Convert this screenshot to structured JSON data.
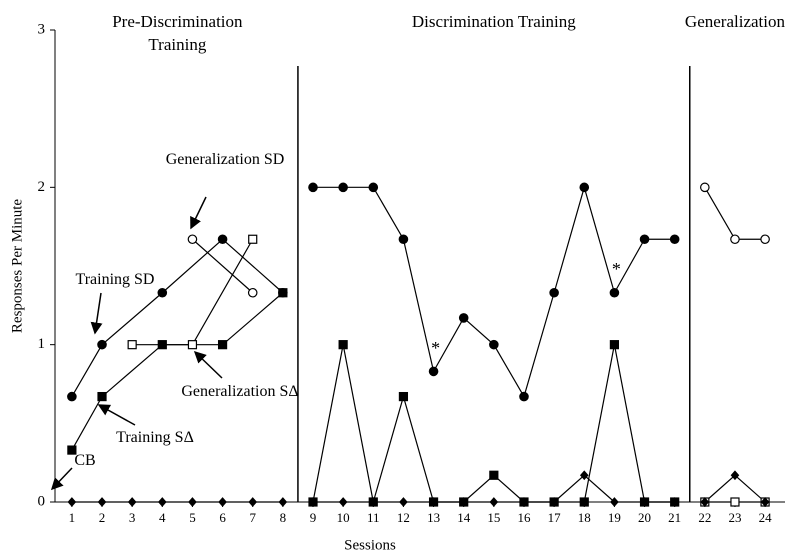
{
  "chart_data": {
    "type": "line",
    "xlabel": "Sessions",
    "ylabel": "Responses Per Minute",
    "xlim": [
      0.44,
      24.66
    ],
    "ylim": [
      0,
      3
    ],
    "xticks": [
      1,
      2,
      3,
      4,
      5,
      6,
      7,
      8,
      9,
      10,
      11,
      12,
      13,
      14,
      15,
      16,
      17,
      18,
      19,
      20,
      21,
      22,
      23,
      24
    ],
    "yticks": [
      0,
      1,
      2,
      3
    ],
    "phase_changes": [
      8.5,
      21.5
    ],
    "phases": [
      {
        "label": "Pre-Discrimination Training",
        "x": 4.5
      },
      {
        "label": "Discrimination Training",
        "x": 15
      },
      {
        "label": "Generalization",
        "x": 23
      }
    ],
    "annotations": [
      {
        "text": "*",
        "x": 13,
        "y": 1
      },
      {
        "text": "*",
        "x": 19,
        "y": 1.5
      }
    ],
    "series": [
      {
        "name": "Training SD",
        "marker": "filled-circle",
        "color": "#000",
        "x": [
          1,
          2,
          4,
          6,
          8,
          null,
          9,
          10,
          11,
          12,
          13,
          14,
          15,
          16,
          17,
          18,
          19,
          20,
          21
        ],
        "values": [
          0.67,
          1.0,
          1.33,
          1.67,
          1.33,
          null,
          2.0,
          2.0,
          2.0,
          1.67,
          0.83,
          1.17,
          1.0,
          0.67,
          1.33,
          2.0,
          1.33,
          1.67,
          1.67
        ]
      },
      {
        "name": "Training SΔ",
        "marker": "filled-square",
        "color": "#000",
        "x": [
          1,
          2,
          4,
          6,
          8,
          null,
          9,
          10,
          11,
          12,
          13,
          14,
          15,
          16,
          17,
          18,
          19,
          20,
          21
        ],
        "values": [
          0.33,
          0.67,
          1.0,
          1.0,
          1.33,
          null,
          0,
          1.0,
          0,
          0.67,
          0,
          0,
          0.17,
          0,
          0,
          0,
          1.0,
          0,
          0
        ]
      },
      {
        "name": "Generalization SD",
        "marker": "open-circle",
        "color": "#000",
        "x": [
          5,
          7,
          null,
          22,
          23,
          24
        ],
        "values": [
          1.67,
          1.33,
          null,
          2.0,
          1.67,
          1.67
        ]
      },
      {
        "name": "Generalization SΔ",
        "marker": "open-square",
        "color": "#000",
        "x": [
          3,
          5,
          7,
          null,
          22,
          23,
          24
        ],
        "values": [
          1.0,
          1.0,
          1.67,
          null,
          0,
          0,
          0
        ]
      },
      {
        "name": "CB",
        "marker": "diamond",
        "color": "#000",
        "x": [
          1,
          2,
          3,
          4,
          5,
          6,
          7,
          8,
          null,
          9,
          10,
          11,
          12,
          13,
          14,
          15,
          16,
          17,
          18,
          19,
          20,
          21,
          null,
          22,
          23,
          24
        ],
        "values": [
          0,
          0,
          0,
          0,
          0,
          0,
          0,
          0,
          null,
          0,
          0,
          0,
          0,
          0,
          0,
          0,
          0,
          0,
          0.17,
          0,
          0,
          0,
          null,
          0,
          0.17,
          0
        ]
      }
    ]
  }
}
